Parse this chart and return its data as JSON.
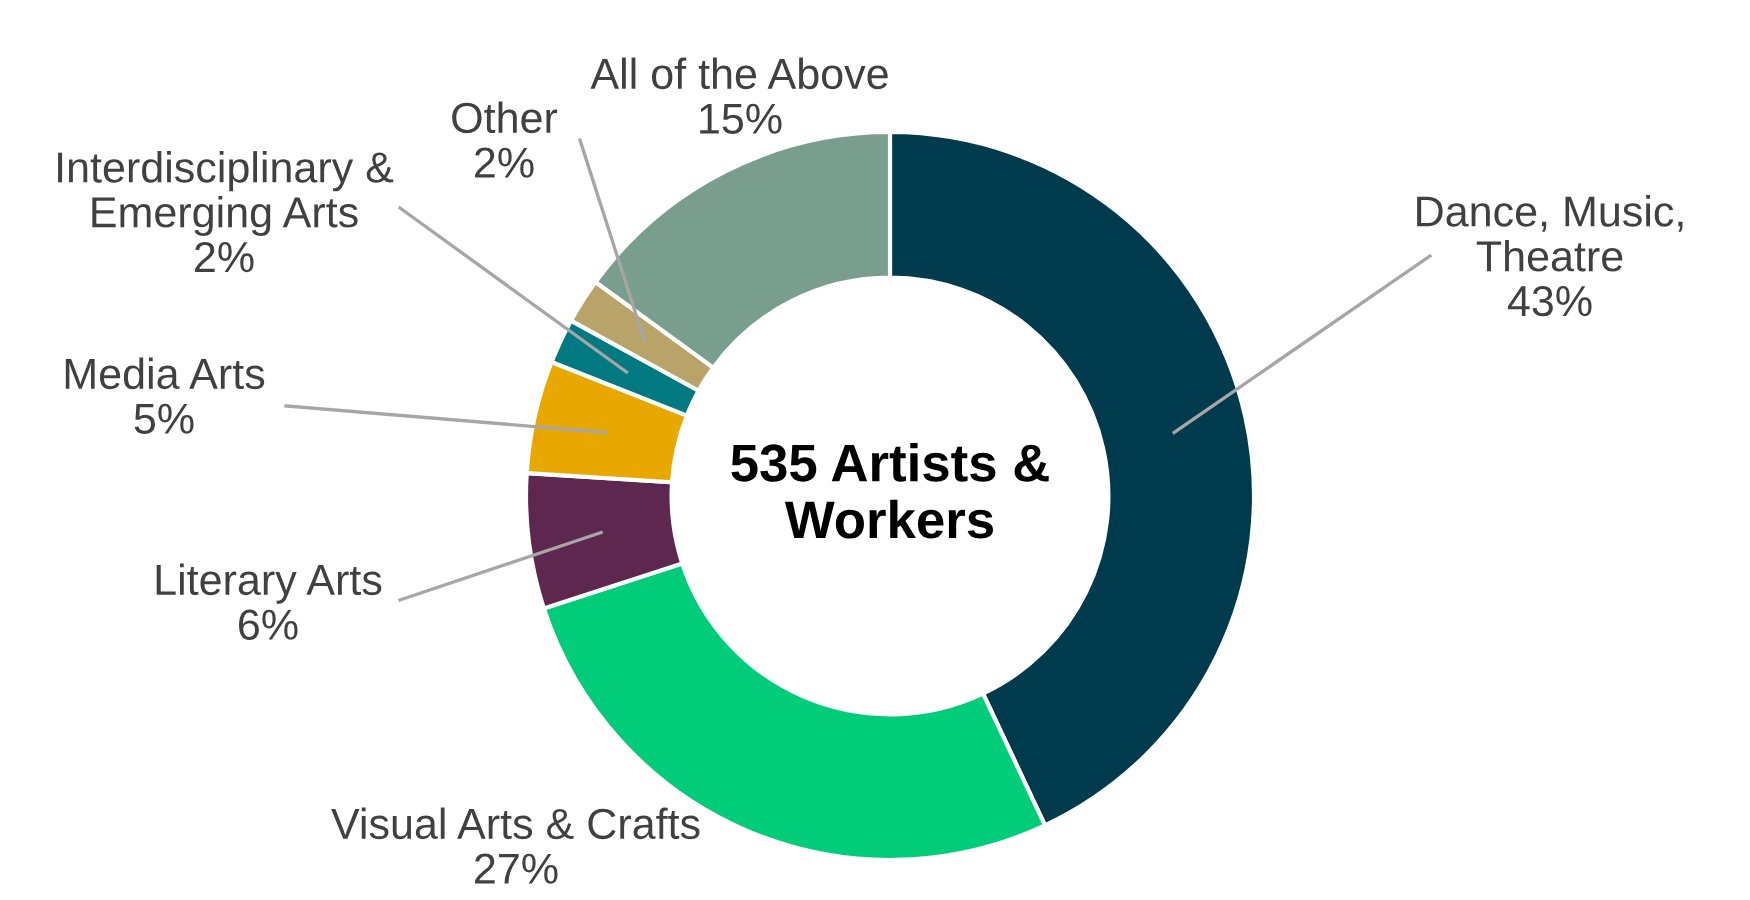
{
  "chart_data": {
    "type": "donut",
    "categories": [
      "Dance, Music,\nTheatre",
      "Visual Arts & Crafts",
      "Literary Arts",
      "Media Arts",
      "Interdisciplinary &\nEmerging Arts",
      "Other",
      "All of the Above"
    ],
    "values": [
      43,
      27,
      6,
      5,
      2,
      2,
      15
    ],
    "colors": [
      "#003a4d",
      "#00cc7a",
      "#5e2750",
      "#e8a800",
      "#007a80",
      "#b8a468",
      "#7a9e8e"
    ],
    "value_labels": [
      "43%",
      "27%",
      "6%",
      "5%",
      "2%",
      "2%",
      "15%"
    ],
    "annotations": [
      "535 Artists &\nWorkers"
    ]
  }
}
